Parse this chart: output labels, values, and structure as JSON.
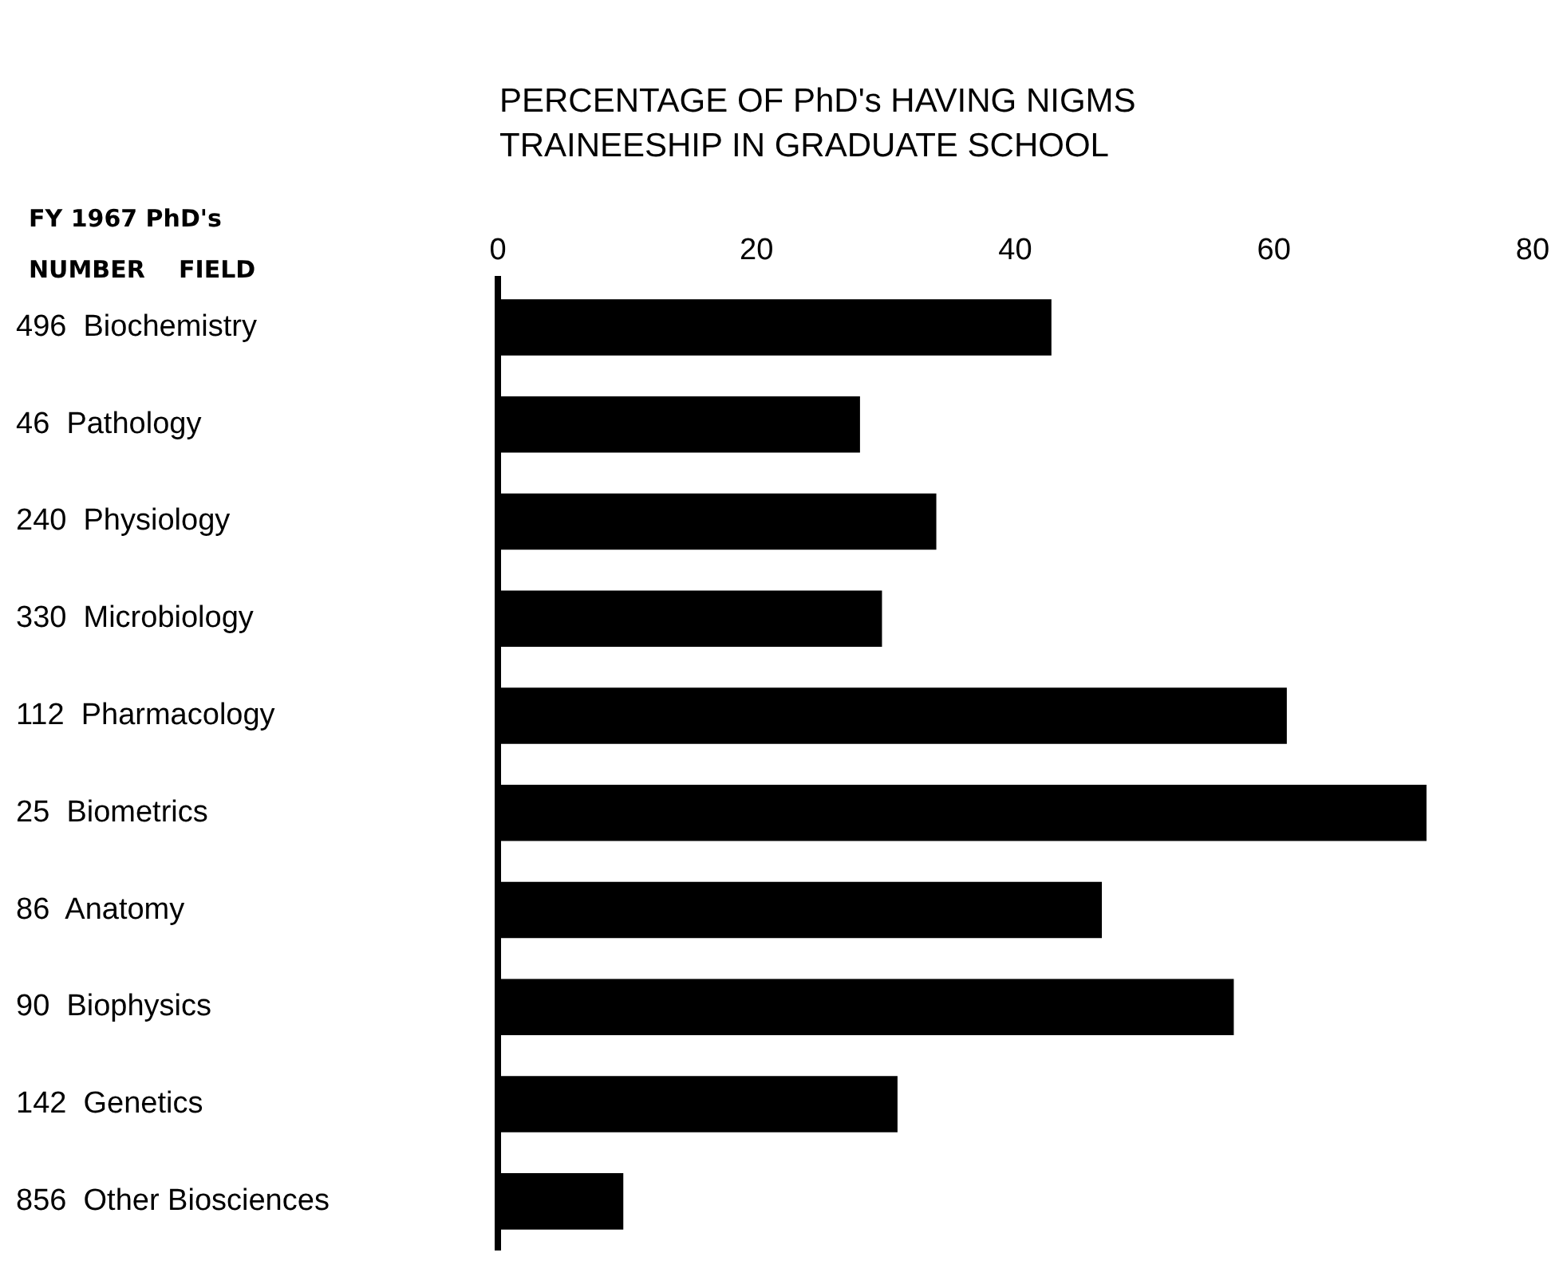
{
  "chart_data": {
    "type": "bar",
    "orientation": "horizontal",
    "title": "PERCENTAGE OF PhD's HAVING NIGMS TRAINEESHIP IN GRADUATE SCHOOL",
    "annotations": [
      "FY 1967 PhD's",
      "NUMBER",
      "FIELD"
    ],
    "categories": [
      "496  Biochemistry",
      "46  Pathology",
      "240  Physiology",
      "330  Microbiology",
      "112  Pharmacology",
      "25  Biometrics",
      "86  Anatomy",
      "90  Biophysics",
      "142  Genetics",
      "856  Other Biosciences"
    ],
    "values": [
      42.8,
      28.0,
      33.9,
      29.7,
      61.0,
      71.8,
      46.7,
      56.9,
      30.9,
      9.7
    ],
    "color": "#000000",
    "xlim": [
      0,
      80
    ],
    "xticks": [
      0,
      20,
      40,
      60,
      80
    ],
    "legend": false
  }
}
